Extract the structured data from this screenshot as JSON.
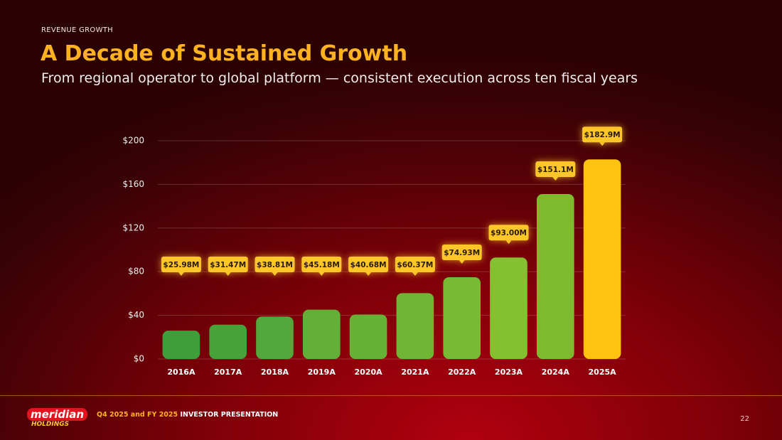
{
  "header": {
    "eyebrow": "REVENUE GROWTH",
    "title": "A Decade of Sustained Growth",
    "subtitle": "From regional operator to global platform — consistent execution across ten fiscal years"
  },
  "chart_data": {
    "type": "bar",
    "categories": [
      "2016A",
      "2017A",
      "2018A",
      "2019A",
      "2020A",
      "2021A",
      "2022A",
      "2023A",
      "2024A",
      "2025A"
    ],
    "values": [
      25.98,
      31.47,
      38.81,
      45.18,
      40.68,
      60.37,
      74.93,
      93.0,
      151.1,
      182.9
    ],
    "value_labels": [
      "$25.98M",
      "$31.47M",
      "$38.81M",
      "$45.18M",
      "$40.68M",
      "$60.37M",
      "$74.93M",
      "$93.00M",
      "$151.1M",
      "$182.9M"
    ],
    "colors": [
      "#3f9e3a",
      "#47a23a",
      "#52a83a",
      "#62b038",
      "#66b237",
      "#6fb635",
      "#77ba33",
      "#85c030",
      "#7fba2e",
      "#ffc20e"
    ],
    "label_color": "#ffc629",
    "ylim": [
      0,
      200
    ],
    "yticks": [
      {
        "value": 0,
        "label": "$0"
      },
      {
        "value": 40,
        "label": "$40"
      },
      {
        "value": 80,
        "label": "$80"
      },
      {
        "value": 120,
        "label": "$120"
      },
      {
        "value": 160,
        "label": "$160"
      },
      {
        "value": 200,
        "label": "$200"
      }
    ],
    "grid": true
  },
  "footer": {
    "logo": "meridian",
    "logo_sub": "HOLDINGS",
    "highlight": "Q4 2025 and FY 2025",
    "text": "INVESTOR PRESENTATION",
    "page": "22"
  }
}
